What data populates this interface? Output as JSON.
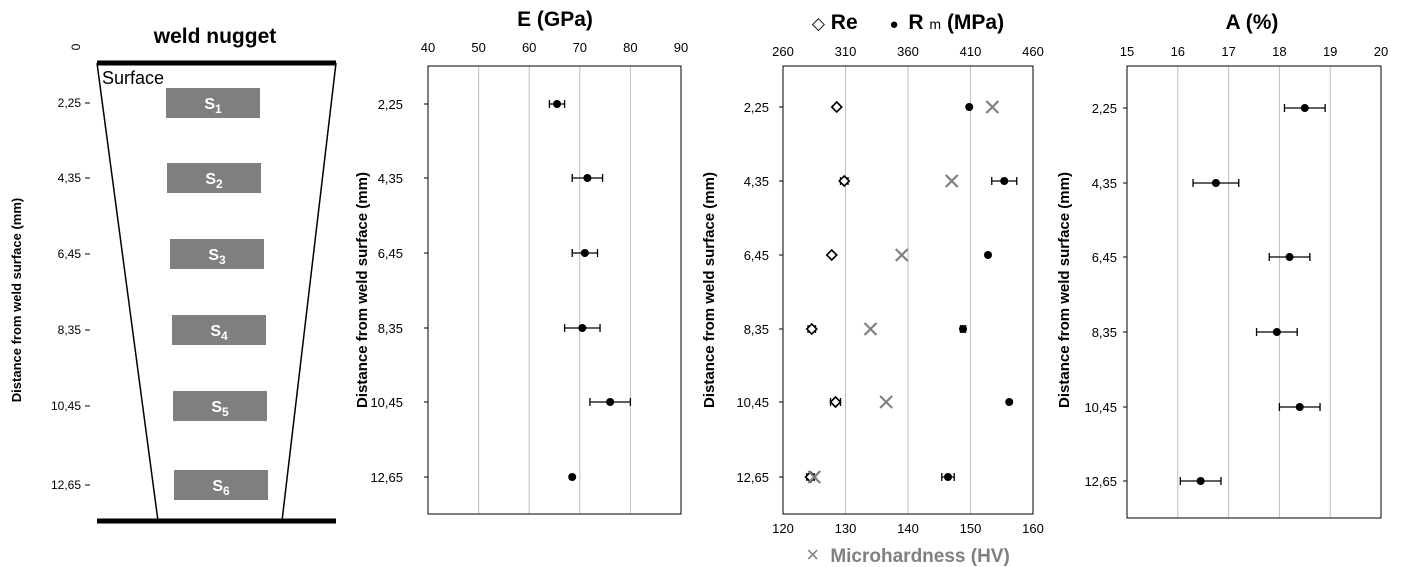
{
  "colors": {
    "ink": "#000000",
    "grid": "#bfbfbf",
    "specimen": "#7f7f7f",
    "hardness": "#808080"
  },
  "schematic": {
    "title": "weld nugget",
    "surface_label": "Surface",
    "ylabel": "Distance from weld surface (mm)",
    "zero_label": "0",
    "tick_labels": [
      "2,25",
      "4,35",
      "6,45",
      "8,35",
      "10,45",
      "12,65"
    ],
    "specimens": [
      {
        "base": "S",
        "sub": "1"
      },
      {
        "base": "S",
        "sub": "2"
      },
      {
        "base": "S",
        "sub": "3"
      },
      {
        "base": "S",
        "sub": "4"
      },
      {
        "base": "S",
        "sub": "5"
      },
      {
        "base": "S",
        "sub": "6"
      }
    ]
  },
  "chart_data": [
    {
      "type": "scatter",
      "title": "E (GPa)",
      "ylabel": "Distance from weld surface (mm)",
      "xlim": [
        40,
        90
      ],
      "x_ticks": [
        40,
        50,
        60,
        70,
        80,
        90
      ],
      "y_categories": [
        "2,25",
        "4,35",
        "6,45",
        "8,35",
        "10,45",
        "12,65"
      ],
      "grid": "vertical",
      "series": [
        {
          "marker": "filled-circle",
          "values": [
            65.5,
            71.5,
            71.0,
            70.5,
            76.0,
            68.5
          ],
          "errors": [
            1.5,
            3.0,
            2.5,
            3.5,
            4.0,
            0
          ]
        }
      ]
    },
    {
      "type": "scatter",
      "title_parts": {
        "re_symbol": "◇",
        "re_label": "Re",
        "rm_symbol": "●",
        "rm_base": "R",
        "rm_sub": "m",
        "rm_unit": " (MPa)"
      },
      "ylabel": "Distance from weld surface (mm)",
      "xlim_top": [
        260,
        460
      ],
      "x_ticks_top": [
        260,
        310,
        360,
        410,
        460
      ],
      "xlim_bottom": [
        120,
        160
      ],
      "x_ticks_bottom": [
        120,
        130,
        140,
        150,
        160
      ],
      "xlabel_bottom": "Microhardness (HV)",
      "xlabel_bottom_symbol": "×",
      "y_categories": [
        "2,25",
        "4,35",
        "6,45",
        "8,35",
        "10,45",
        "12,65"
      ],
      "grid": "vertical",
      "series": [
        {
          "name": "Re",
          "axis": "top",
          "marker": "open-diamond",
          "values": [
            303,
            309,
            299,
            283,
            302,
            282
          ],
          "errors": [
            0,
            3,
            0,
            3,
            4,
            3
          ]
        },
        {
          "name": "Rm",
          "axis": "top",
          "marker": "filled-circle",
          "values": [
            409,
            437,
            424,
            404,
            441,
            392
          ],
          "errors": [
            0,
            10,
            0,
            2,
            0,
            5
          ]
        },
        {
          "name": "Microhardness",
          "axis": "bottom",
          "marker": "cross",
          "values": [
            153.5,
            147,
            139,
            134,
            136.5,
            125
          ]
        }
      ]
    },
    {
      "type": "scatter",
      "title": "A (%)",
      "ylabel": "Distance from weld surface (mm)",
      "xlim": [
        15,
        20
      ],
      "x_ticks": [
        15,
        16,
        17,
        18,
        19,
        20
      ],
      "y_categories": [
        "2,25",
        "4,35",
        "6,45",
        "8,35",
        "10,45",
        "12,65"
      ],
      "grid": "vertical",
      "series": [
        {
          "marker": "filled-circle",
          "values": [
            18.5,
            16.75,
            18.2,
            17.95,
            18.4,
            16.45
          ],
          "errors": [
            0.4,
            0.45,
            0.4,
            0.4,
            0.4,
            0.4
          ]
        }
      ]
    }
  ]
}
